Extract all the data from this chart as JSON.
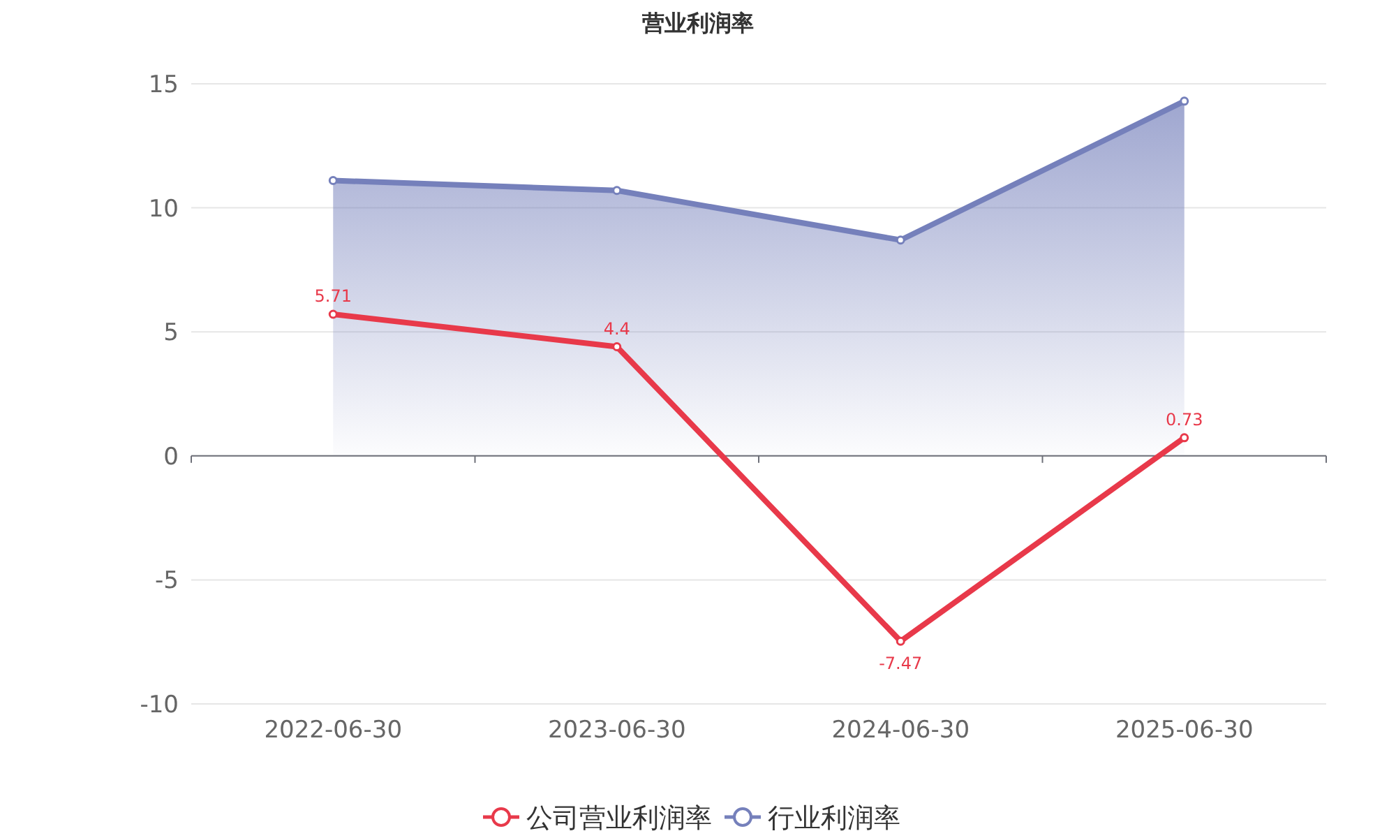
{
  "chart_data": {
    "type": "line",
    "title": "营业利润率",
    "categories": [
      "2022-06-30",
      "2023-06-30",
      "2024-06-30",
      "2025-06-30"
    ],
    "series": [
      {
        "name": "公司营业利润率",
        "color": "#e8394a",
        "values": [
          5.71,
          4.4,
          -7.47,
          0.73
        ],
        "value_labels": [
          "5.71",
          "4.4",
          "-7.47",
          "0.73"
        ]
      },
      {
        "name": "行业利润率",
        "type": "area",
        "color": "#7580bb",
        "values": [
          11.1,
          10.7,
          8.7,
          14.3
        ]
      }
    ],
    "ylim": [
      -10,
      15
    ],
    "yticks": [
      -10,
      -5,
      0,
      5,
      10,
      15
    ],
    "grid": "y",
    "legend": "bottom",
    "marker": "circle",
    "line_style": "solid"
  }
}
